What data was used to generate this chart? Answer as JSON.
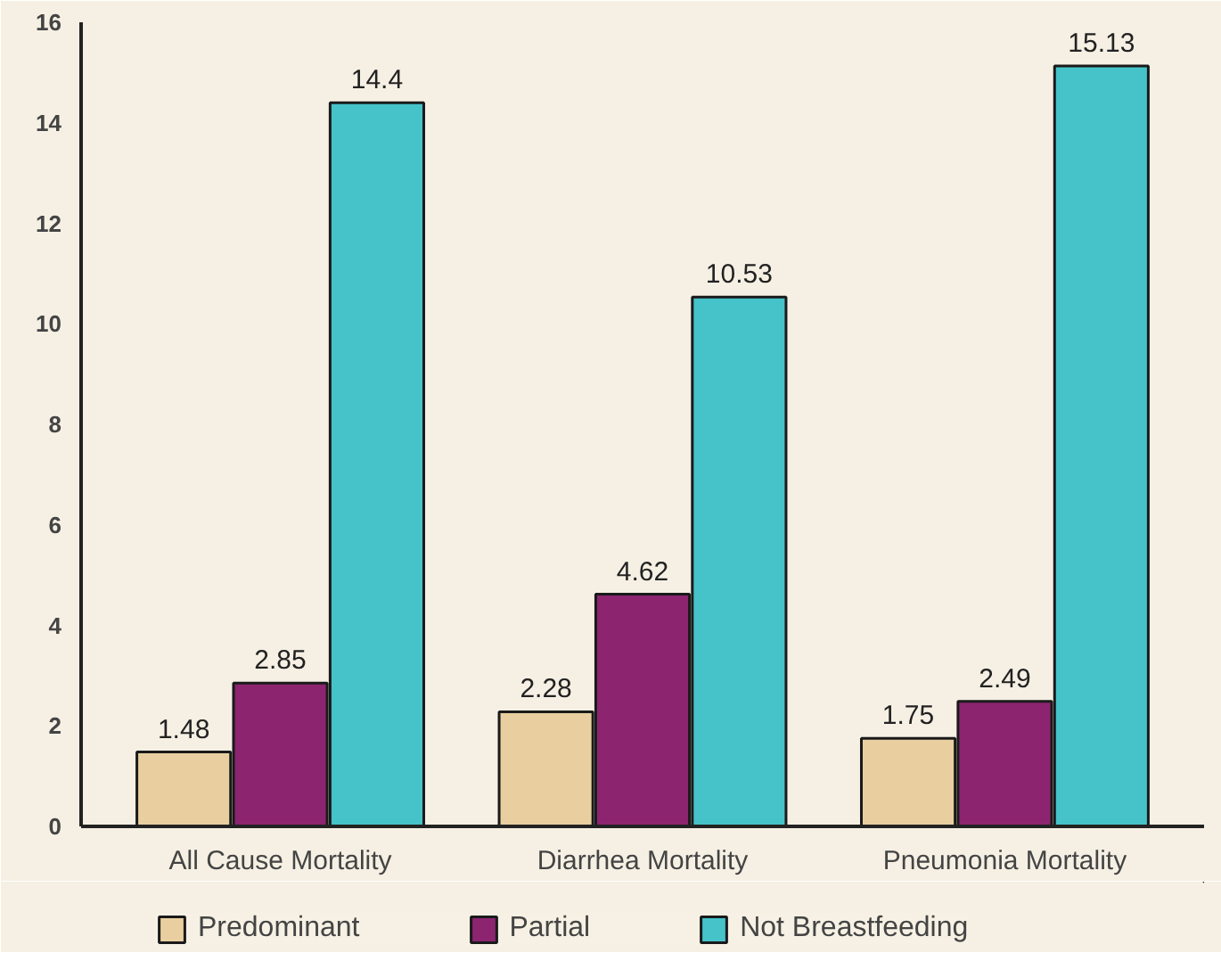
{
  "chart_data": {
    "type": "bar",
    "categories": [
      "All Cause Mortality",
      "Diarrhea Mortality",
      "Pneumonia Mortality"
    ],
    "series": [
      {
        "name": "Predominant",
        "color": "#e9cfa0",
        "values": [
          1.48,
          2.28,
          1.75
        ]
      },
      {
        "name": "Partial",
        "color": "#8c2470",
        "values": [
          2.85,
          4.62,
          2.49
        ]
      },
      {
        "name": "Not Breastfeeding",
        "color": "#45c3c9",
        "values": [
          14.4,
          10.53,
          15.13
        ]
      }
    ],
    "ylim": [
      0,
      16
    ],
    "yticks": [
      0,
      2,
      4,
      6,
      8,
      10,
      12,
      14,
      16
    ],
    "grid": false,
    "legend": "bottom",
    "data_labels": true
  }
}
